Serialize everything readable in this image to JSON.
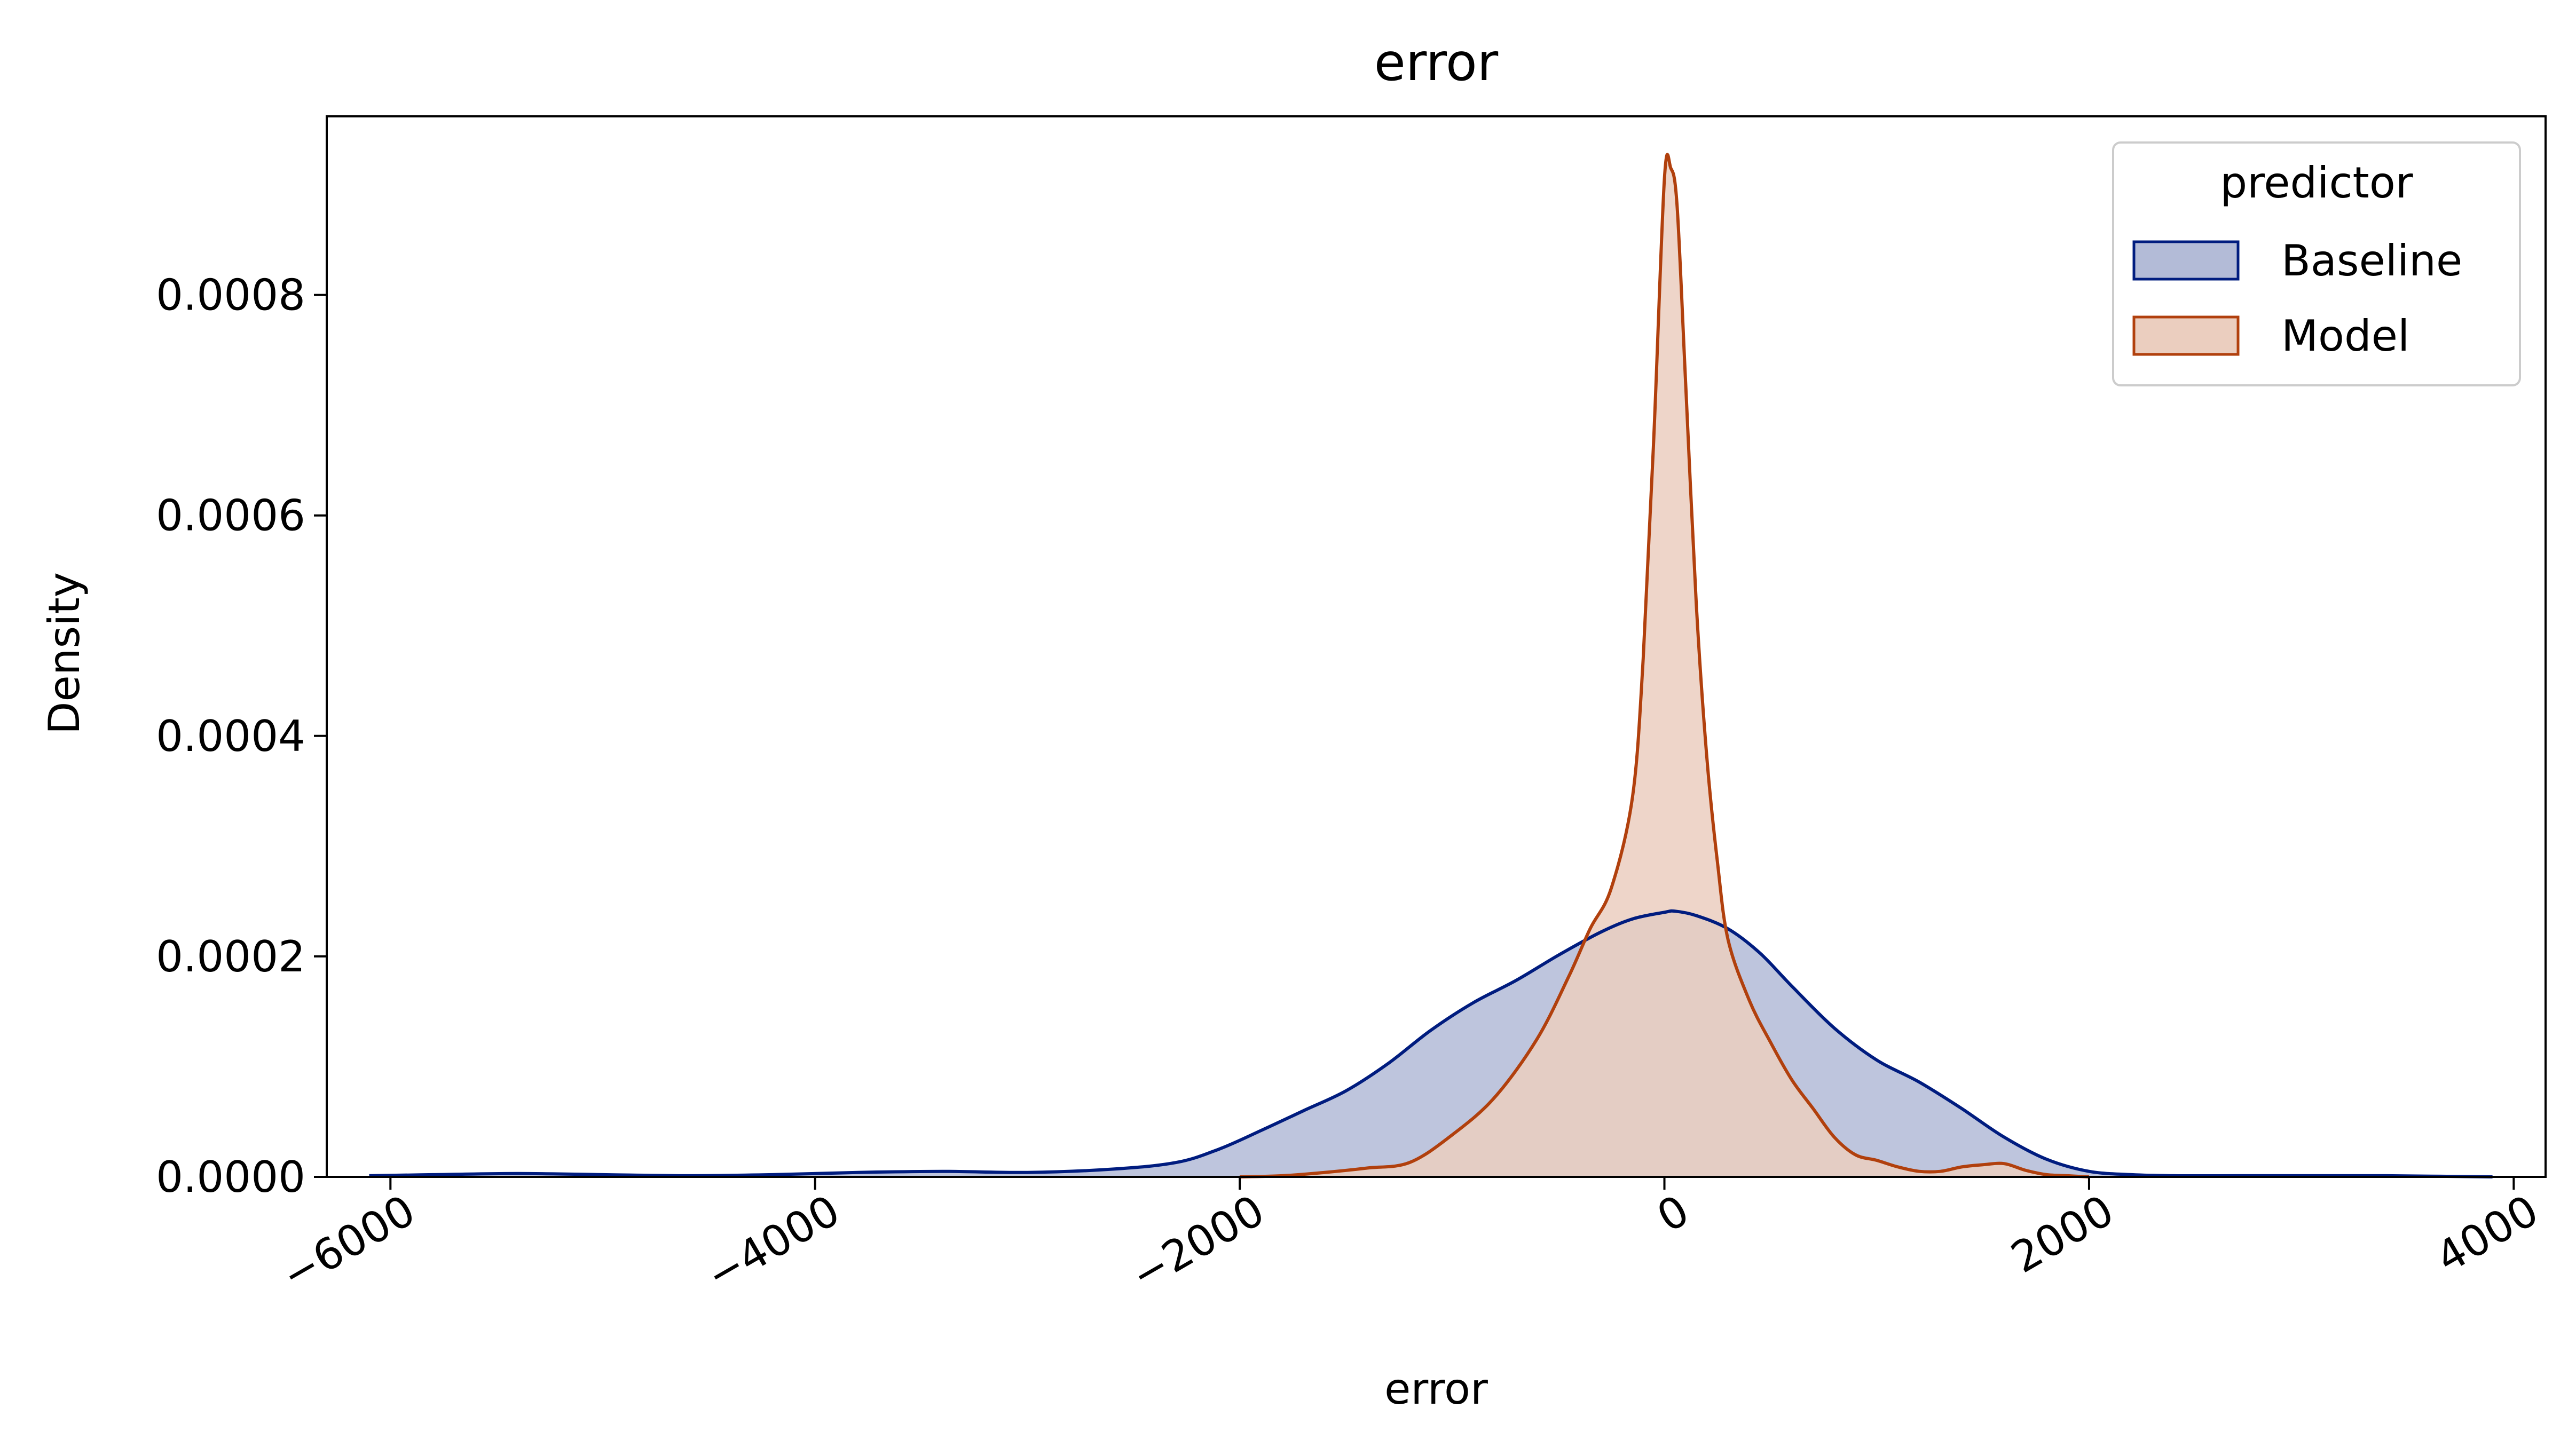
{
  "chart_data": {
    "type": "area",
    "title": "error",
    "xlabel": "error",
    "ylabel": "Density",
    "xlim": [
      -6300,
      4150
    ],
    "ylim": [
      0,
      0.000962
    ],
    "x_ticks": [
      -6000,
      -4000,
      -2000,
      0,
      2000,
      4000
    ],
    "x_tick_labels": [
      "−6000",
      "−4000",
      "−2000",
      "0",
      "2000",
      "4000"
    ],
    "y_ticks": [
      0,
      0.0002,
      0.0004,
      0.0006,
      0.0008
    ],
    "y_tick_labels": [
      "0.0000",
      "0.0002",
      "0.0004",
      "0.0006",
      "0.0008"
    ],
    "grid": false,
    "legend": {
      "title": "predictor",
      "placement": "top-right"
    },
    "series": [
      {
        "name": "Baseline",
        "line_color": "#001c7f",
        "fill_color": "#b3bbd7",
        "x": [
          -6100,
          -5800,
          -5400,
          -5000,
          -4600,
          -4200,
          -3800,
          -3400,
          -3000,
          -2600,
          -2300,
          -2100,
          -1900,
          -1700,
          -1500,
          -1300,
          -1100,
          -900,
          -700,
          -500,
          -300,
          -150,
          0,
          50,
          150,
          300,
          450,
          600,
          800,
          1000,
          1200,
          1400,
          1600,
          1800,
          2000,
          2200,
          2400,
          2700,
          3000,
          3400,
          3900
        ],
        "y": [
          1e-06,
          2e-06,
          3e-06,
          2e-06,
          1e-06,
          2e-06,
          4e-06,
          5e-06,
          4e-06,
          7e-06,
          1.3e-05,
          2.5e-05,
          4.2e-05,
          6e-05,
          7.8e-05,
          0.000103,
          0.000133,
          0.000158,
          0.000178,
          0.000201,
          0.000222,
          0.000234,
          0.00024,
          0.000241,
          0.000237,
          0.000225,
          0.000203,
          0.000173,
          0.000135,
          0.000106,
          8.6e-05,
          6.2e-05,
          3.6e-05,
          1.6e-05,
          5e-06,
          2e-06,
          1e-06,
          1e-06,
          1e-06,
          1e-06,
          0
        ]
      },
      {
        "name": "Model",
        "line_color": "#b1400d",
        "fill_color": "#ebcebf",
        "x": [
          -2000,
          -1800,
          -1600,
          -1400,
          -1200,
          -1000,
          -800,
          -600,
          -450,
          -350,
          -250,
          -150,
          -100,
          -50,
          0,
          30,
          60,
          100,
          150,
          200,
          250,
          300,
          400,
          500,
          600,
          700,
          800,
          900,
          1000,
          1100,
          1200,
          1300,
          1400,
          1500,
          1600,
          1700,
          1800,
          1900,
          2000
        ],
        "y": [
          0,
          1e-06,
          4e-06,
          8e-06,
          1.3e-05,
          3.8e-05,
          7.2e-05,
          0.000125,
          0.000182,
          0.000225,
          0.000262,
          0.000345,
          0.00047,
          0.00067,
          0.000905,
          0.000915,
          0.00088,
          0.00072,
          0.00052,
          0.00038,
          0.000285,
          0.000215,
          0.00016,
          0.000122,
          8.8e-05,
          6.2e-05,
          3.6e-05,
          2e-05,
          1.5e-05,
          9e-06,
          5e-06,
          5e-06,
          9e-06,
          1.1e-05,
          1.2e-05,
          6e-06,
          2e-06,
          1e-06,
          0
        ]
      }
    ]
  }
}
